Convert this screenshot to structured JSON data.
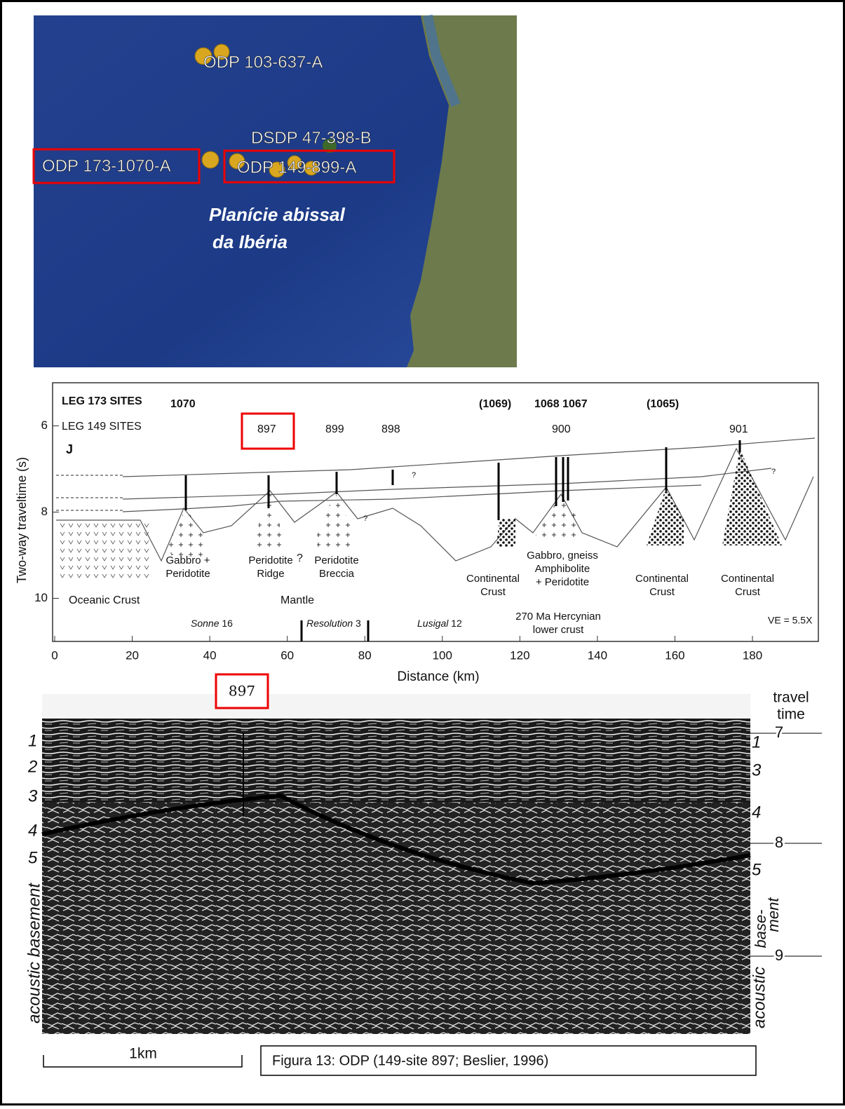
{
  "map": {
    "sites": [
      "ODP 103-637-A",
      "DSDP 47-398-B",
      "ODP 173-1070-A",
      "ODP 149-899-A"
    ],
    "region": [
      "Planície abissal",
      "da Ibéria"
    ]
  },
  "section": {
    "leg173_label": "LEG 173 SITES",
    "leg173_sites": [
      "1070",
      "(1069)",
      "1068 1067",
      "(1065)"
    ],
    "leg149_label": "LEG 149 SITES",
    "leg149_sites": [
      "897",
      "899",
      "898",
      "900",
      "901"
    ],
    "panel_letter": "J",
    "query": "?",
    "units": [
      [
        "Gabbro +",
        "Peridotite"
      ],
      [
        "Peridotite",
        "Ridge"
      ],
      [
        "Peridotite",
        "Breccia"
      ],
      [
        "Continental",
        "Crust"
      ],
      [
        "Gabbro, gneiss",
        "Amphibolite",
        "+ Peridotite"
      ],
      [
        "Continental",
        "Crust"
      ],
      [
        "Continental",
        "Crust"
      ]
    ],
    "oceanic_crust": "Oceanic Crust",
    "mantle": "Mantle",
    "surveys": [
      [
        "Sonne",
        "16"
      ],
      [
        "Resolution",
        "3"
      ],
      [
        "Lusigal",
        "12"
      ]
    ],
    "hercynian": [
      "270 Ma Hercynian",
      "lower crust"
    ],
    "ve": "VE = 5.5X",
    "y_label": "Two-way traveltime (s)",
    "x_label": "Distance (km)",
    "xlim": [
      0,
      197
    ],
    "xticks": [
      0,
      20,
      40,
      60,
      80,
      100,
      120,
      140,
      160,
      180
    ],
    "ylim": [
      5,
      11
    ],
    "yticks": [
      6,
      8,
      10
    ]
  },
  "seismic": {
    "site": "897",
    "travel_time": [
      "travel",
      "time"
    ],
    "time_ticks": [
      "7",
      "8",
      "9"
    ],
    "left_layers": [
      "1",
      "2",
      "3",
      "4",
      "5"
    ],
    "right_layers": [
      "1",
      "3",
      "4",
      "5"
    ],
    "left_label": "acoustic basement",
    "right_label": [
      "acoustic",
      "base-",
      "ment"
    ],
    "scale": "1km"
  },
  "caption": "Figura 13: ODP (149-site 897; Beslier, 1996)"
}
